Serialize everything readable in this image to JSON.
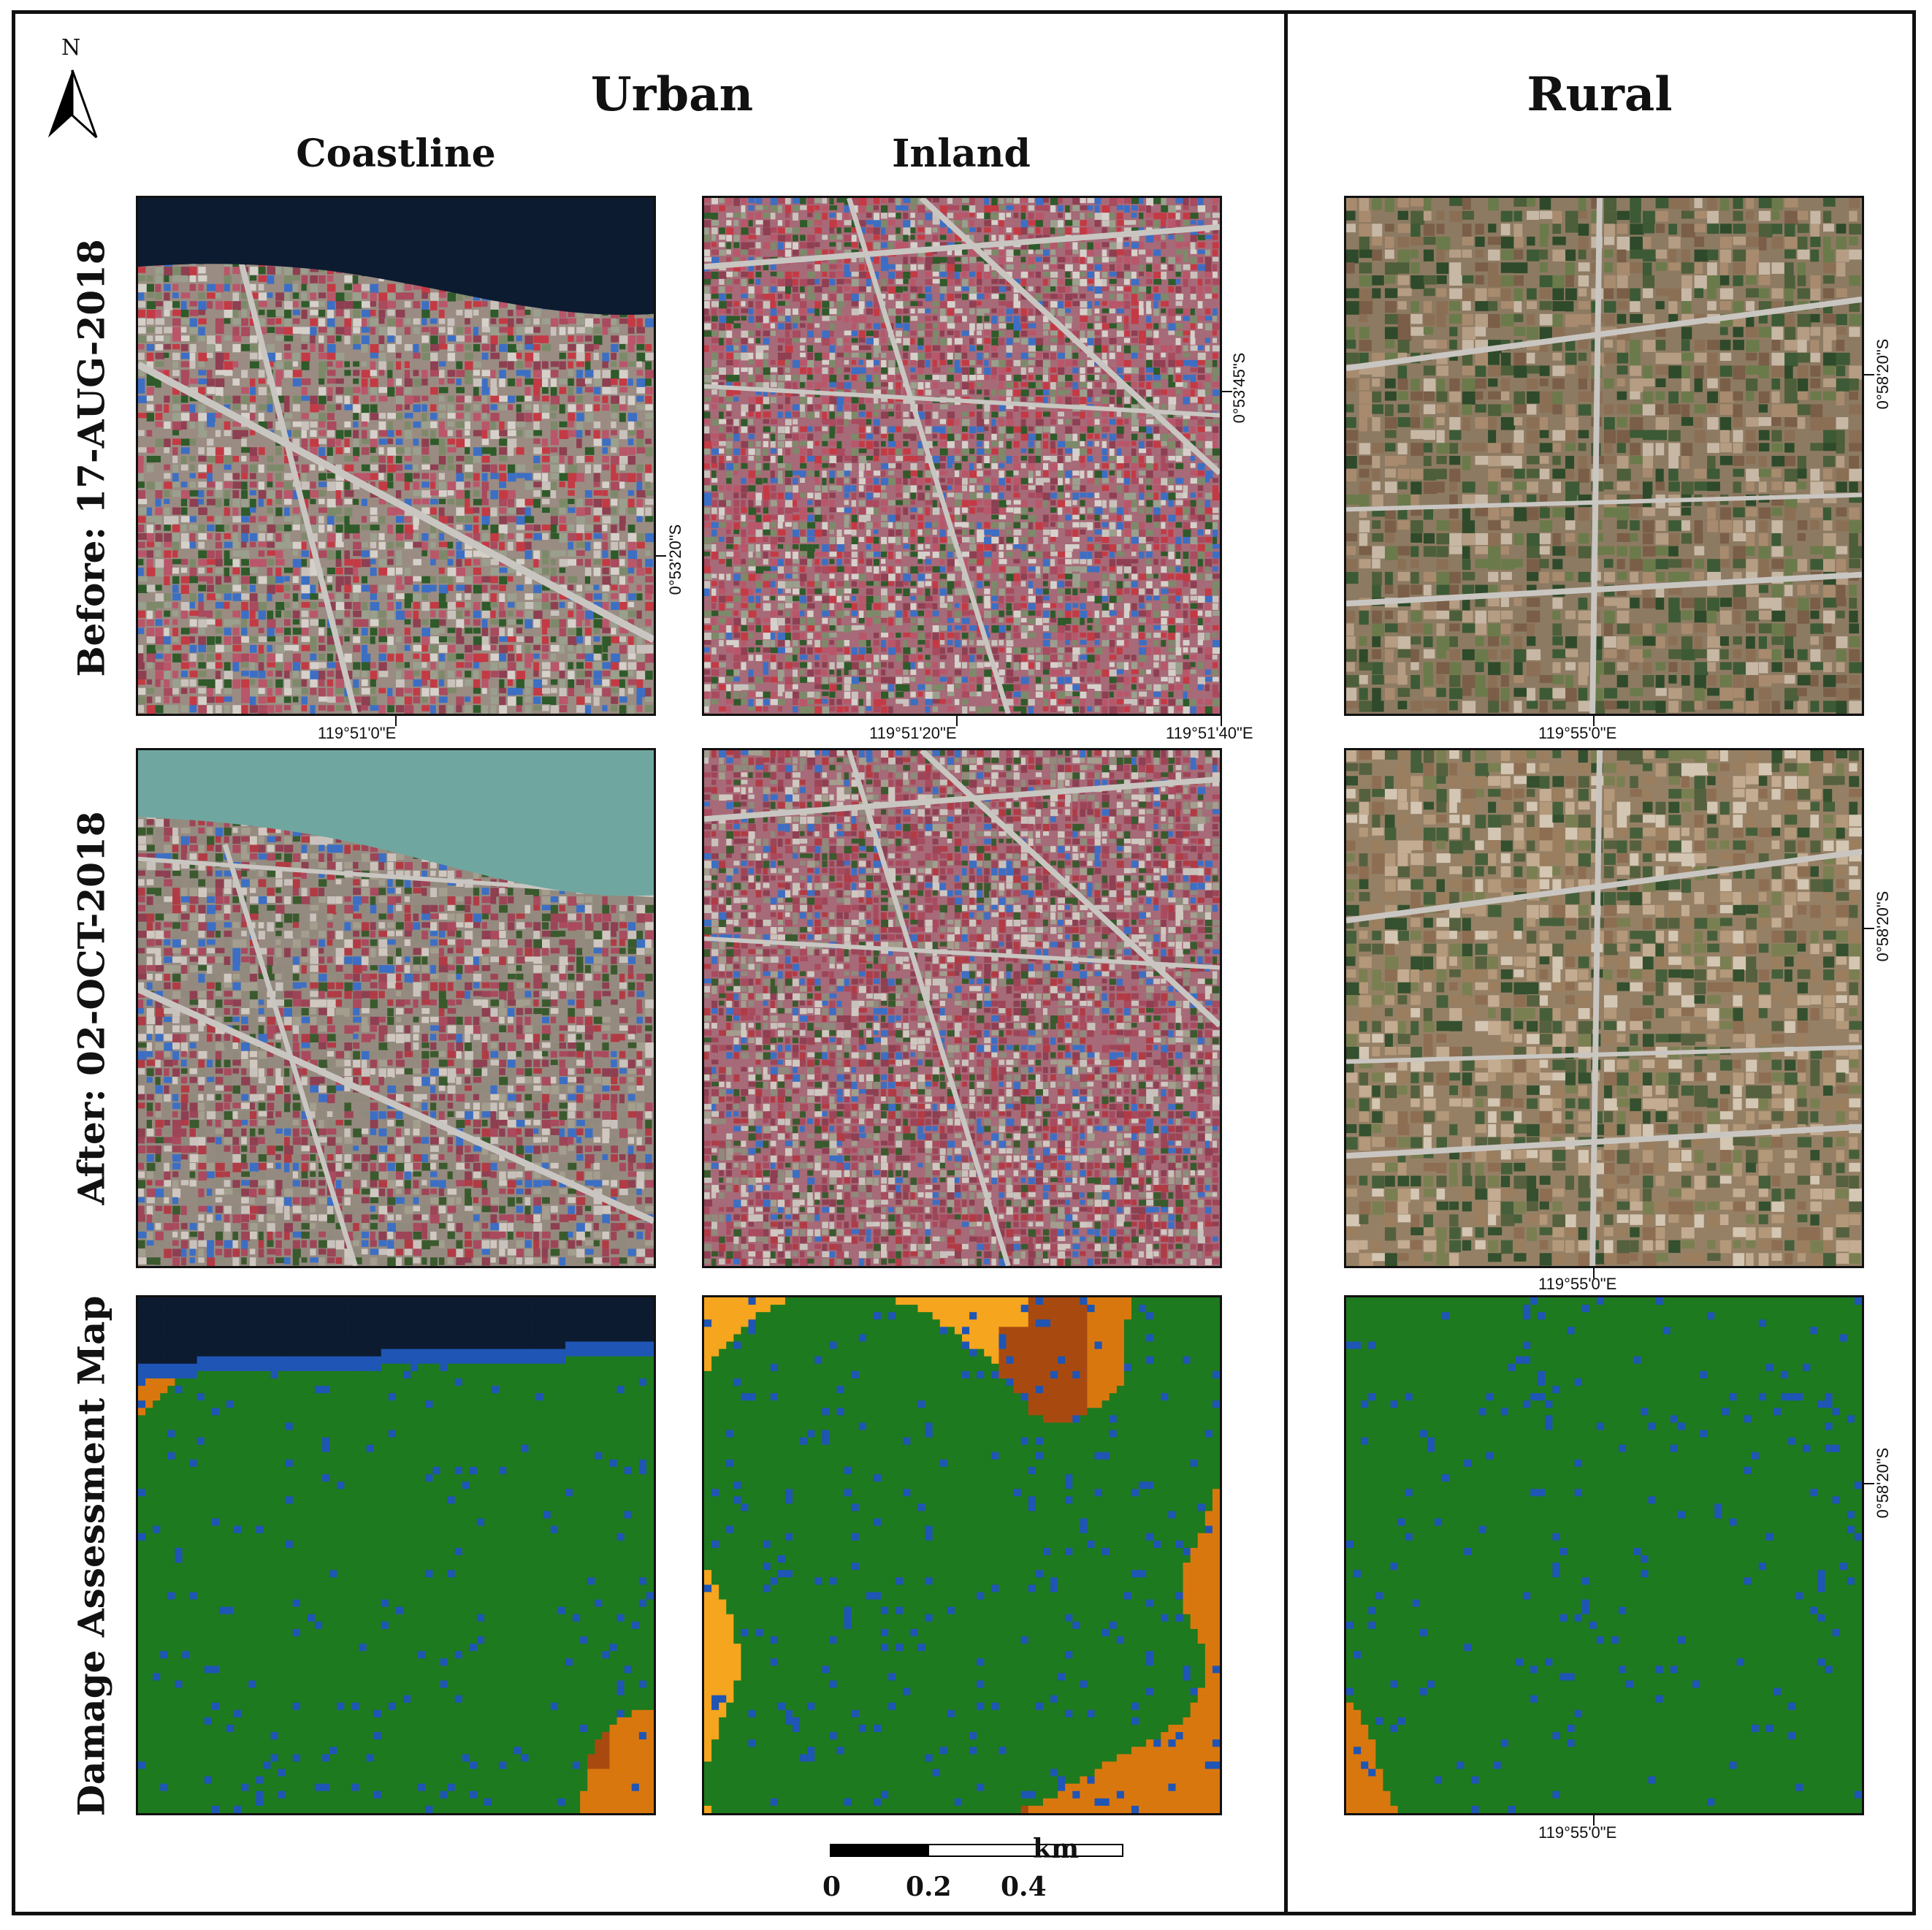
{
  "headings": {
    "urban": "Urban",
    "rural": "Rural",
    "coastline": "Coastline",
    "inland": "Inland"
  },
  "rows": {
    "before": "Before: 17-AUG-2018",
    "after": "After: 02-OCT-2018",
    "damage": "Damage Assessment Map"
  },
  "north_arrow": {
    "label": "N"
  },
  "coordinates": {
    "coast_before_lon": "119°51'0\"E",
    "coast_before_lat": "0°53'20\"S",
    "inland_before_lon1": "119°51'20\"E",
    "inland_before_lon2": "119°51'40\"E",
    "inland_before_lat": "0°53'45\"S",
    "rural_before_lon": "119°55'0\"E",
    "rural_before_lat": "0°58'20\"S",
    "rural_after_lon": "119°55'0\"E",
    "rural_after_lat": "0°58'20\"S",
    "rural_damage_lon": "119°55'0\"E",
    "rural_damage_lat": "0°58'20\"S"
  },
  "scale_bar": {
    "unit": "km",
    "ticks": [
      "0",
      "0.2",
      "0.4"
    ]
  },
  "colors": {
    "damage_green": "#1e7a1e",
    "damage_blue": "#1f55b4",
    "damage_orange": "#d9770f",
    "damage_light_orange": "#f6a51e",
    "damage_dark": "#a84a10",
    "sea_dark": "#0d1b30",
    "sea_turquoise": "#6fa7a0",
    "urban_roof": "#a94a5e",
    "rural_field": "#9a7e5e"
  }
}
